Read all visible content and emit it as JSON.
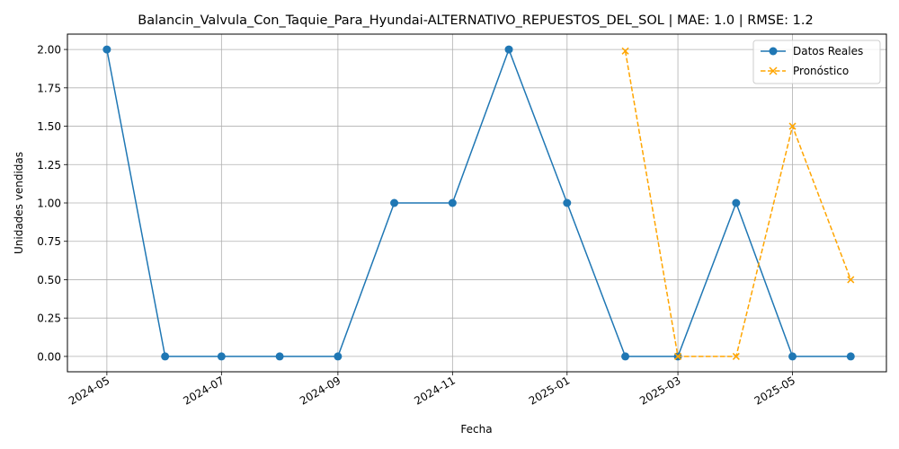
{
  "chart_data": {
    "type": "line",
    "title": "Balancin_Valvula_Con_Taquie_Para_Hyundai-ALTERNATIVO_REPUESTOS_DEL_SOL | MAE: 1.0 | RMSE: 1.2",
    "xlabel": "Fecha",
    "ylabel": "Unidades vendidas",
    "ylim": [
      -0.1,
      2.1
    ],
    "xlim": [
      "2024-04-10",
      "2025-06-20"
    ],
    "grid": true,
    "legend_position": "top-right",
    "x_ticks": [
      "2024-05",
      "2024-07",
      "2024-09",
      "2024-11",
      "2025-01",
      "2025-03",
      "2025-05"
    ],
    "y_ticks": [
      "0.00",
      "0.25",
      "0.50",
      "0.75",
      "1.00",
      "1.25",
      "1.50",
      "1.75",
      "2.00"
    ],
    "series": [
      {
        "name": "Datos Reales",
        "color": "#1f77b4",
        "marker": "circle",
        "linestyle": "solid",
        "x": [
          "2024-05-01",
          "2024-06-01",
          "2024-07-01",
          "2024-08-01",
          "2024-09-01",
          "2024-10-01",
          "2024-11-01",
          "2024-12-01",
          "2025-01-01",
          "2025-02-01",
          "2025-03-01",
          "2025-04-01",
          "2025-05-01",
          "2025-06-01"
        ],
        "values": [
          2,
          0,
          0,
          0,
          0,
          1,
          1,
          2,
          1,
          0,
          0,
          1,
          0,
          0
        ]
      },
      {
        "name": "Pronóstico",
        "color": "#ffa500",
        "marker": "x",
        "linestyle": "dashed",
        "x": [
          "2025-02-01",
          "2025-03-01",
          "2025-04-01",
          "2025-05-01",
          "2025-06-01"
        ],
        "values": [
          1.99,
          0,
          0,
          1.5,
          0.5
        ]
      }
    ]
  }
}
